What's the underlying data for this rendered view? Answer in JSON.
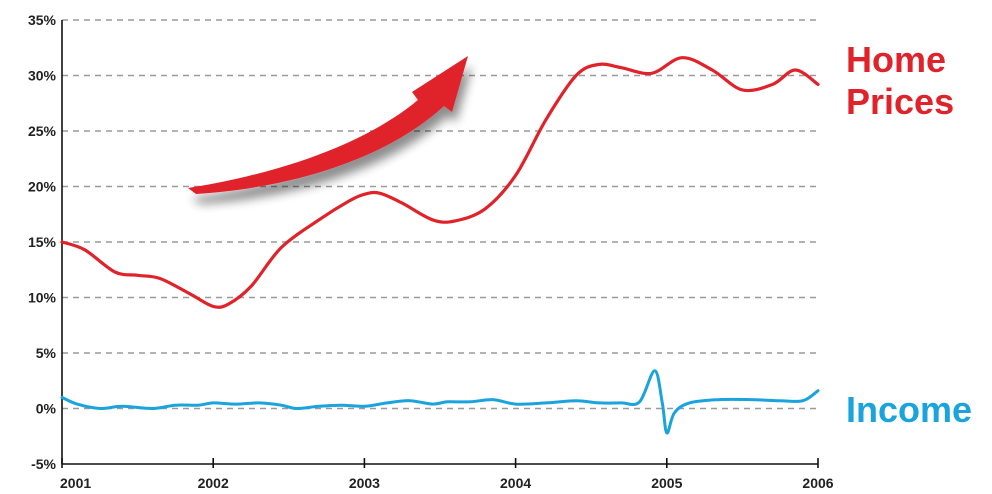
{
  "chart_data": {
    "type": "line",
    "title": "",
    "xlabel": "",
    "ylabel": "",
    "xlim": [
      2001,
      2006
    ],
    "ylim": [
      -5,
      35
    ],
    "grid": true,
    "x_ticks": [
      {
        "value": 2001,
        "label": "2001"
      },
      {
        "value": 2002,
        "label": "2002"
      },
      {
        "value": 2003,
        "label": "2003"
      },
      {
        "value": 2004,
        "label": "2004"
      },
      {
        "value": 2005,
        "label": "2005"
      },
      {
        "value": 2006,
        "label": "2006"
      }
    ],
    "y_ticks": [
      {
        "value": 35,
        "label": "35%"
      },
      {
        "value": 30,
        "label": "30%"
      },
      {
        "value": 25,
        "label": "25%"
      },
      {
        "value": 20,
        "label": "20%"
      },
      {
        "value": 15,
        "label": "15%"
      },
      {
        "value": 10,
        "label": "10%"
      },
      {
        "value": 5,
        "label": "5%"
      },
      {
        "value": 0,
        "label": "0%"
      },
      {
        "value": -5,
        "label": "-5%"
      }
    ],
    "series": [
      {
        "name": "Home Prices",
        "label": "Home\nPrices",
        "color": "#e0232a",
        "x": [
          2001.0,
          2001.15,
          2001.35,
          2001.5,
          2001.65,
          2001.85,
          2002.0,
          2002.1,
          2002.25,
          2002.45,
          2002.7,
          2002.9,
          2003.0,
          2003.1,
          2003.25,
          2003.45,
          2003.6,
          2003.8,
          2004.0,
          2004.2,
          2004.4,
          2004.55,
          2004.7,
          2004.9,
          2005.1,
          2005.3,
          2005.5,
          2005.7,
          2005.85,
          2006.0
        ],
        "y": [
          15.0,
          14.3,
          12.3,
          12.0,
          11.7,
          10.3,
          9.2,
          9.4,
          11.0,
          14.5,
          17.0,
          18.7,
          19.3,
          19.4,
          18.5,
          17.0,
          16.9,
          18.0,
          21.0,
          26.0,
          30.0,
          31.0,
          30.7,
          30.2,
          31.6,
          30.5,
          28.7,
          29.2,
          30.5,
          29.2
        ]
      },
      {
        "name": "Income",
        "label": "Income",
        "color": "#1aa3dc",
        "x": [
          2001.0,
          2001.1,
          2001.25,
          2001.4,
          2001.6,
          2001.75,
          2001.9,
          2002.0,
          2002.15,
          2002.3,
          2002.45,
          2002.55,
          2002.7,
          2002.85,
          2003.0,
          2003.15,
          2003.3,
          2003.45,
          2003.55,
          2003.7,
          2003.85,
          2004.0,
          2004.2,
          2004.4,
          2004.55,
          2004.7,
          2004.82,
          2004.92,
          2004.97,
          2005.0,
          2005.05,
          2005.15,
          2005.35,
          2005.55,
          2005.75,
          2005.9,
          2006.0
        ],
        "y": [
          1.0,
          0.4,
          0.0,
          0.2,
          0.0,
          0.3,
          0.3,
          0.5,
          0.4,
          0.5,
          0.3,
          0.0,
          0.2,
          0.3,
          0.2,
          0.5,
          0.7,
          0.4,
          0.6,
          0.6,
          0.8,
          0.4,
          0.5,
          0.7,
          0.5,
          0.5,
          0.6,
          3.4,
          0.5,
          -2.2,
          -0.4,
          0.5,
          0.8,
          0.8,
          0.7,
          0.7,
          1.6
        ]
      }
    ]
  },
  "arrow": {
    "color": "#e0232a"
  }
}
